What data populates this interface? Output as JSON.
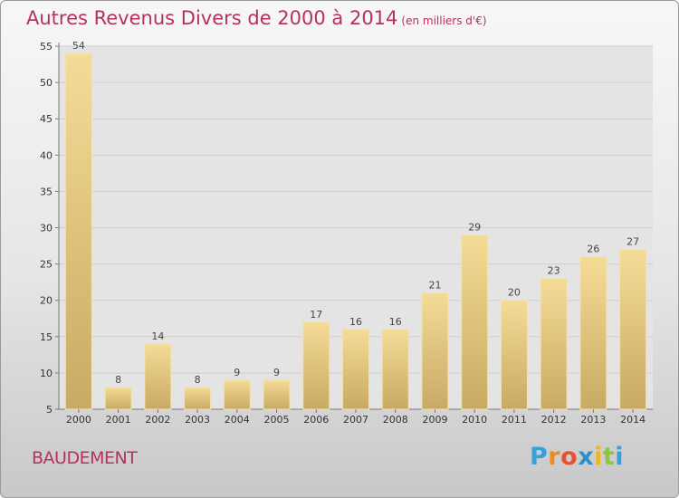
{
  "header": {
    "title": "Autres Revenus Divers de 2000 à 2014",
    "subtitle": "(en milliers d'€)"
  },
  "footer": {
    "commune": "BAUDEMENT",
    "logo_letters": [
      "P",
      "r",
      "o",
      "x",
      "i",
      "t",
      "i"
    ],
    "logo_colors": [
      "#3aa0dc",
      "#f08a1c",
      "#e8532e",
      "#2e8fcc",
      "#f0b41c",
      "#8cc63f",
      "#3aa0dc"
    ]
  },
  "colors": {
    "bar_light": "#f5dc96",
    "bar_dark": "#c8aa64",
    "title": "#b5325a",
    "grid": "#cfcfcf"
  },
  "chart_data": {
    "type": "bar",
    "title": "Autres Revenus Divers de 2000 à 2014",
    "subtitle": "(en milliers d'€)",
    "categories": [
      "2000",
      "2001",
      "2002",
      "2003",
      "2004",
      "2005",
      "2006",
      "2007",
      "2008",
      "2009",
      "2010",
      "2011",
      "2012",
      "2013",
      "2014"
    ],
    "values": [
      54,
      8,
      14,
      8,
      9,
      9,
      17,
      16,
      16,
      21,
      29,
      20,
      23,
      26,
      27
    ],
    "ylim": [
      5,
      55
    ],
    "yticks": [
      5,
      10,
      15,
      20,
      25,
      30,
      35,
      40,
      45,
      50,
      55
    ],
    "grid": true,
    "data_labels": true
  }
}
